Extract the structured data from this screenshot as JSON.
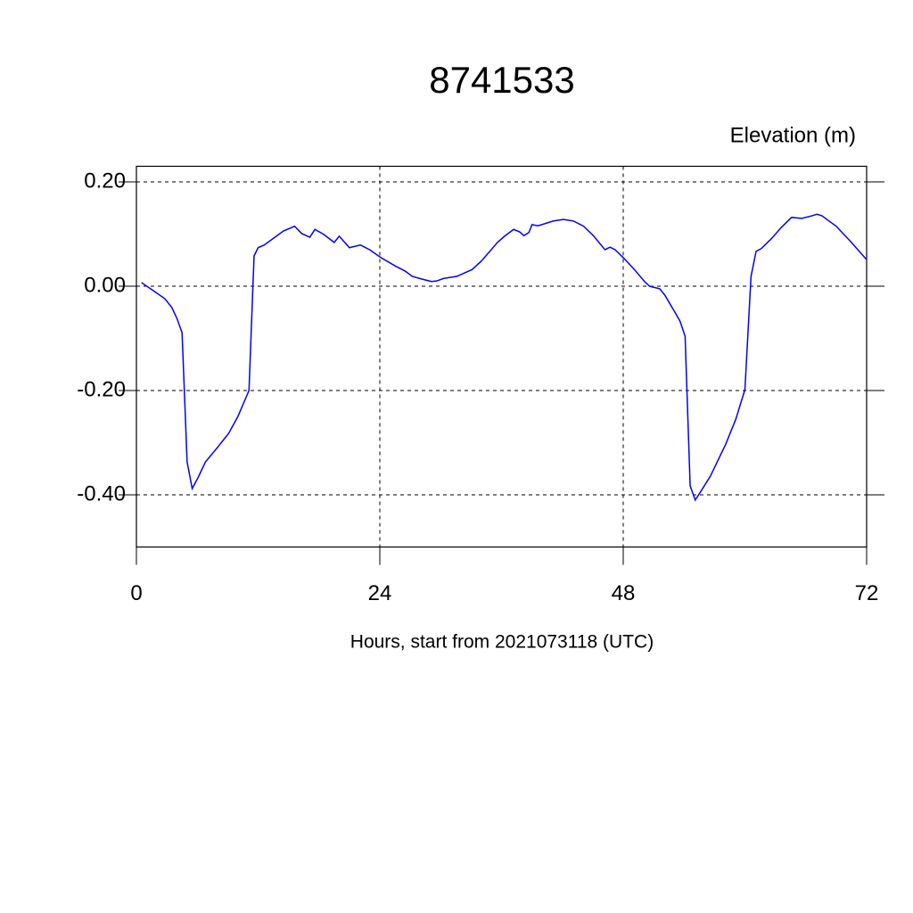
{
  "chart_data": {
    "type": "line",
    "title": "8741533",
    "y_axis_label": "Elevation (m)",
    "x_axis_label": "Hours, start from 2021073118 (UTC)",
    "xlim": [
      0,
      72
    ],
    "xticks": [
      0,
      24,
      48,
      72
    ],
    "ylim": [
      -0.5,
      0.23
    ],
    "yticks": [
      {
        "value": 0.2,
        "label": "0.20"
      },
      {
        "value": 0.0,
        "label": "0.00"
      },
      {
        "value": -0.2,
        "label": "-0.20"
      },
      {
        "value": -0.4,
        "label": "-0.40"
      }
    ],
    "grid": true,
    "series": [
      {
        "color": "#0000ff",
        "x": [
          0.5,
          1.7,
          2.8,
          3.5,
          4.0,
          4.5,
          5.0,
          5.5,
          6.1,
          6.8,
          8.0,
          9.1,
          10.0,
          11.1,
          11.6,
          12.0,
          12.6,
          14.5,
          15.6,
          16.3,
          17.1,
          17.6,
          18.5,
          19.5,
          20.0,
          21.0,
          22.1,
          23.0,
          24.1,
          25.6,
          26.5,
          27.2,
          28.1,
          29.1,
          29.6,
          30.3,
          31.6,
          33.1,
          34.0,
          35.6,
          36.3,
          37.2,
          37.8,
          38.2,
          38.7,
          39.0,
          39.6,
          41.1,
          42.1,
          43.1,
          44.1,
          45.1,
          46.2,
          46.7,
          47.2,
          48.1,
          49.1,
          50.1,
          50.6,
          51.6,
          52.1,
          53.1,
          53.6,
          54.1,
          54.6,
          55.1,
          55.6,
          56.6,
          58.1,
          59.1,
          60.0,
          60.6,
          61.1,
          61.6,
          62.6,
          63.6,
          64.6,
          65.6,
          66.6,
          67.1,
          67.6,
          69.0,
          70.5,
          72.0
        ],
        "values": [
          0.007,
          -0.009,
          -0.024,
          -0.041,
          -0.062,
          -0.089,
          -0.337,
          -0.388,
          -0.366,
          -0.337,
          -0.309,
          -0.282,
          -0.25,
          -0.2,
          0.058,
          0.074,
          0.079,
          0.106,
          0.115,
          0.101,
          0.094,
          0.109,
          0.099,
          0.084,
          0.096,
          0.074,
          0.079,
          0.07,
          0.055,
          0.038,
          0.029,
          0.019,
          0.014,
          0.009,
          0.01,
          0.015,
          0.019,
          0.032,
          0.048,
          0.084,
          0.096,
          0.109,
          0.104,
          0.097,
          0.103,
          0.118,
          0.116,
          0.125,
          0.128,
          0.125,
          0.115,
          0.096,
          0.07,
          0.075,
          0.07,
          0.053,
          0.032,
          0.009,
          0.0,
          -0.005,
          -0.017,
          -0.05,
          -0.067,
          -0.096,
          -0.383,
          -0.41,
          -0.395,
          -0.364,
          -0.303,
          -0.255,
          -0.198,
          0.019,
          0.067,
          0.072,
          0.091,
          0.113,
          0.132,
          0.13,
          0.135,
          0.138,
          0.135,
          0.115,
          0.084,
          0.051
        ]
      }
    ]
  }
}
